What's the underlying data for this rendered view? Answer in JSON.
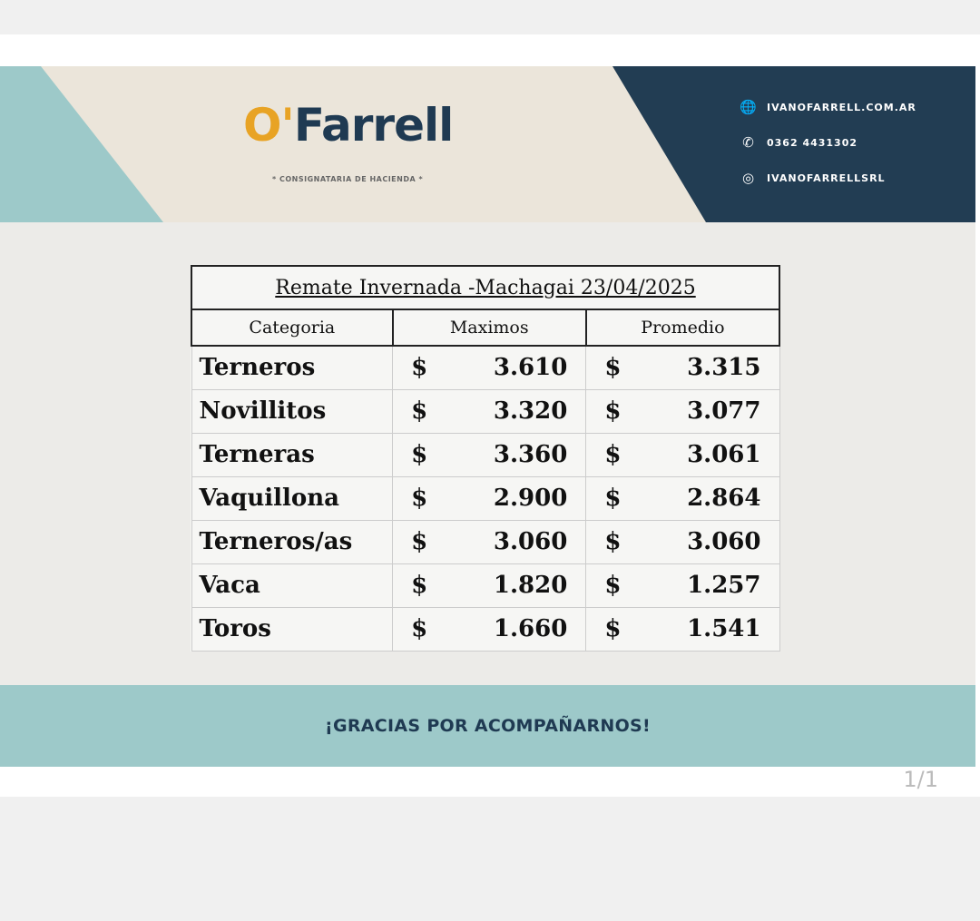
{
  "brand": {
    "logo_o": "O'",
    "logo_rest": "Farrell",
    "tagline": "* CONSIGNATARIA DE HACIENDA *"
  },
  "contacts": [
    {
      "icon": "globe-icon",
      "text": "IVANOFARRELL.COM.AR"
    },
    {
      "icon": "phone-icon",
      "text": "0362 4431302"
    },
    {
      "icon": "instagram-icon",
      "text": "IVANOFARRELLSRL"
    }
  ],
  "table": {
    "title": "Remate Invernada -Machagai 23/04/2025",
    "headers": [
      "Categoria",
      "Maximos",
      "Promedio"
    ],
    "currency": "$",
    "rows": [
      {
        "cat": "Terneros",
        "max": "3.610",
        "avg": "3.315"
      },
      {
        "cat": "Novillitos",
        "max": "3.320",
        "avg": "3.077"
      },
      {
        "cat": "Terneras",
        "max": "3.360",
        "avg": "3.061"
      },
      {
        "cat": "Vaquillona",
        "max": "2.900",
        "avg": "2.864"
      },
      {
        "cat": "Terneros/as",
        "max": "3.060",
        "avg": "3.060"
      },
      {
        "cat": "Vaca",
        "max": "1.820",
        "avg": "1.257"
      },
      {
        "cat": "Toros",
        "max": "1.660",
        "avg": "1.541"
      }
    ]
  },
  "footer": "¡GRACIAS POR ACOMPAÑARNOS!",
  "pager": "1/1",
  "colors": {
    "navy": "#223d53",
    "teal": "#9dc9c9",
    "orange": "#e8a324",
    "beige": "#ebe5da"
  }
}
